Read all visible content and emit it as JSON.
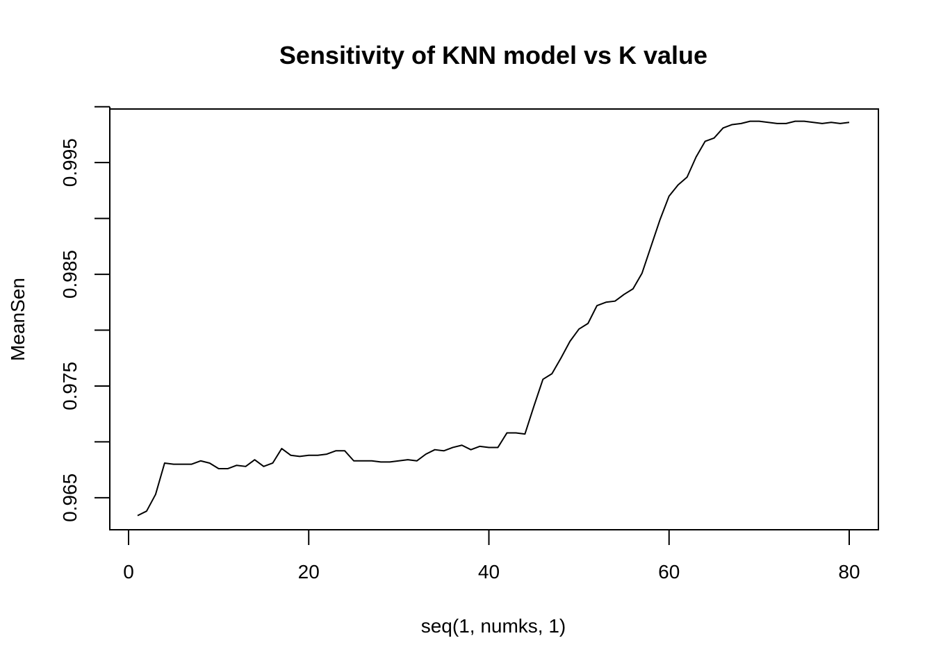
{
  "chart_data": {
    "type": "line",
    "title": "Sensitivity of KNN model vs K value",
    "xlabel": "seq(1, numks, 1)",
    "ylabel": "MeanSen",
    "xlim": [
      0,
      80
    ],
    "ylim": [
      0.9635,
      0.9993
    ],
    "grid": false,
    "x_ticks": [
      0,
      20,
      40,
      60,
      80
    ],
    "x_tick_labels": [
      "0",
      "20",
      "40",
      "60",
      "80"
    ],
    "y_ticks": [
      0.965,
      0.97,
      0.975,
      0.98,
      0.985,
      0.99,
      0.995,
      1.0
    ],
    "y_tick_labels": [
      "0.965",
      "",
      "0.975",
      "",
      "0.985",
      "",
      "0.995",
      ""
    ],
    "series": [
      {
        "color": "#000000",
        "x": [
          1,
          2,
          3,
          4,
          5,
          6,
          7,
          8,
          9,
          10,
          11,
          12,
          13,
          14,
          15,
          16,
          17,
          18,
          19,
          20,
          21,
          22,
          23,
          24,
          25,
          26,
          27,
          28,
          29,
          30,
          31,
          32,
          33,
          34,
          35,
          36,
          37,
          38,
          39,
          40,
          41,
          42,
          43,
          44,
          45,
          46,
          47,
          48,
          49,
          50,
          51,
          52,
          53,
          54,
          55,
          56,
          57,
          58,
          59,
          60,
          61,
          62,
          63,
          64,
          65,
          66,
          67,
          68,
          69,
          70,
          71,
          72,
          73,
          74,
          75,
          76,
          77,
          78,
          79,
          80
        ],
        "values": [
          0.9634,
          0.9638,
          0.9653,
          0.9681,
          0.968,
          0.968,
          0.968,
          0.9683,
          0.9681,
          0.9676,
          0.9676,
          0.9679,
          0.9678,
          0.9684,
          0.9678,
          0.9681,
          0.9694,
          0.9688,
          0.9687,
          0.9688,
          0.9688,
          0.9689,
          0.9692,
          0.9692,
          0.9683,
          0.9683,
          0.9683,
          0.9682,
          0.9682,
          0.9683,
          0.9684,
          0.9683,
          0.9689,
          0.9693,
          0.9692,
          0.9695,
          0.9697,
          0.9693,
          0.9696,
          0.9695,
          0.9695,
          0.9708,
          0.9708,
          0.9707,
          0.9732,
          0.9756,
          0.9761,
          0.9775,
          0.979,
          0.9801,
          0.9806,
          0.9822,
          0.9825,
          0.9826,
          0.9832,
          0.9837,
          0.9851,
          0.9875,
          0.9899,
          0.992,
          0.993,
          0.9937,
          0.9955,
          0.9969,
          0.9972,
          0.9981,
          0.9984,
          0.9985,
          0.9987,
          0.9987,
          0.9986,
          0.9985,
          0.9985,
          0.9987,
          0.9987,
          0.9986,
          0.9985,
          0.9986,
          0.9985,
          0.9986
        ]
      }
    ]
  }
}
